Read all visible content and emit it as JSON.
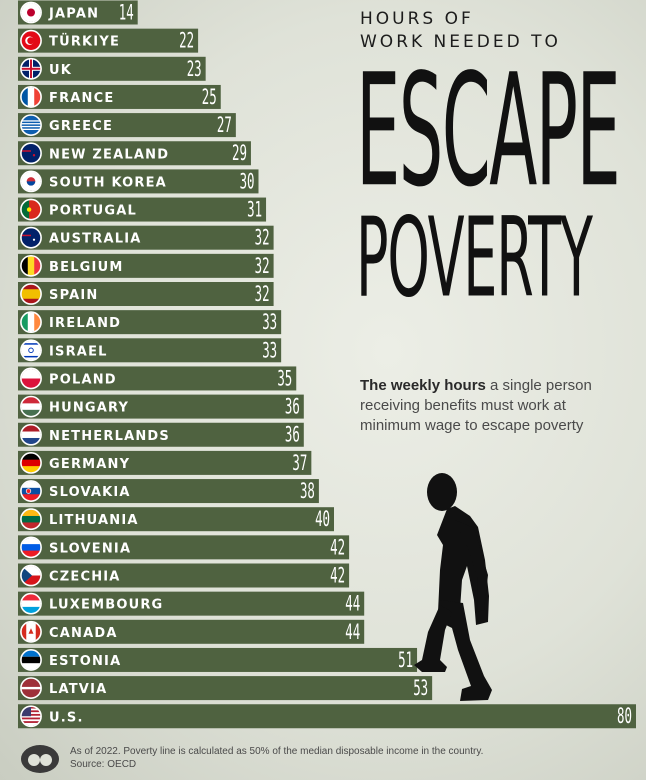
{
  "title": {
    "line1": "HOURS OF",
    "line2": "WORK NEEDED TO",
    "big1": "ESCAPE",
    "big2": "POVERTY"
  },
  "subtitle": {
    "bold": "The weekly hours",
    "rest": "a single person receiving benefits must work at minimum wage to escape poverty"
  },
  "footer": {
    "note": "As of 2022. Poverty line is calculated as 50% of the median disposable income in the country.",
    "source": "Source: OECD"
  },
  "colors": {
    "bar": "#4f6240",
    "bar_text": "#ffffff",
    "figure": "#111111"
  },
  "chart_data": {
    "type": "bar",
    "orientation": "horizontal",
    "categories": [
      "JAPAN",
      "TÜRKIYE",
      "UK",
      "FRANCE",
      "GREECE",
      "NEW ZEALAND",
      "SOUTH KOREA",
      "PORTUGAL",
      "AUSTRALIA",
      "BELGIUM",
      "SPAIN",
      "IRELAND",
      "ISRAEL",
      "POLAND",
      "HUNGARY",
      "NETHERLANDS",
      "GERMANY",
      "SLOVAKIA",
      "LITHUANIA",
      "SLOVENIA",
      "CZECHIA",
      "LUXEMBOURG",
      "CANADA",
      "ESTONIA",
      "LATVIA",
      "U.S."
    ],
    "values": [
      14,
      22,
      23,
      25,
      27,
      29,
      30,
      31,
      32,
      32,
      32,
      33,
      33,
      35,
      36,
      36,
      37,
      38,
      40,
      42,
      42,
      44,
      44,
      51,
      53,
      80
    ],
    "flag_icons": [
      "flag-japan-icon",
      "flag-turkiye-icon",
      "flag-uk-icon",
      "flag-france-icon",
      "flag-greece-icon",
      "flag-new-zealand-icon",
      "flag-south-korea-icon",
      "flag-portugal-icon",
      "flag-australia-icon",
      "flag-belgium-icon",
      "flag-spain-icon",
      "flag-ireland-icon",
      "flag-israel-icon",
      "flag-poland-icon",
      "flag-hungary-icon",
      "flag-netherlands-icon",
      "flag-germany-icon",
      "flag-slovakia-icon",
      "flag-lithuania-icon",
      "flag-slovenia-icon",
      "flag-czechia-icon",
      "flag-luxembourg-icon",
      "flag-canada-icon",
      "flag-estonia-icon",
      "flag-latvia-icon",
      "flag-us-icon"
    ]
  }
}
